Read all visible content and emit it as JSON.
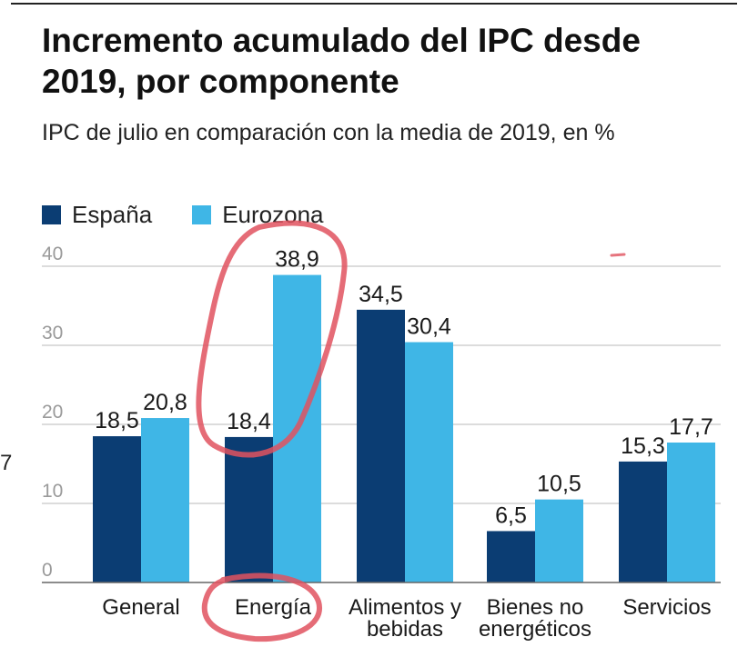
{
  "title": "Incremento acumulado del IPC desde 2019, por componente",
  "subtitle": "IPC de julio en comparación con la media de 2019, en %",
  "edge_mark": "7",
  "colors": {
    "espana": "#0b3d73",
    "eurozona": "#3fb6e6",
    "grid": "#b8b8b8",
    "axis_text": "#9a9a9a",
    "annotation": "#e0525f"
  },
  "chart_data": {
    "type": "bar",
    "title": "Incremento acumulado del IPC desde 2019, por componente",
    "subtitle": "IPC de julio en comparación con la media de 2019, en %",
    "xlabel": "",
    "ylabel": "",
    "ylim": [
      0,
      40
    ],
    "yticks": [
      0,
      10,
      20,
      30,
      40
    ],
    "grid": true,
    "legend_position": "top-left",
    "categories": [
      [
        "General"
      ],
      [
        "Energía"
      ],
      [
        "Alimentos y",
        "bebidas"
      ],
      [
        "Bienes no",
        "energéticos"
      ],
      [
        "Servicios"
      ]
    ],
    "series": [
      {
        "name": "España",
        "values": [
          18.5,
          18.4,
          34.5,
          6.5,
          15.3
        ],
        "labels": [
          "18,5",
          "18,4",
          "34,5",
          "6,5",
          "15,3"
        ]
      },
      {
        "name": "Eurozona",
        "values": [
          20.8,
          38.9,
          30.4,
          10.5,
          17.7
        ],
        "labels": [
          "20,8",
          "38,9",
          "30,4",
          "10,5",
          "17,7"
        ]
      }
    ],
    "annotations": [
      {
        "type": "hand-drawn-circle",
        "around": "Energía bars"
      },
      {
        "type": "hand-drawn-circle",
        "around": "Energía label"
      }
    ]
  }
}
